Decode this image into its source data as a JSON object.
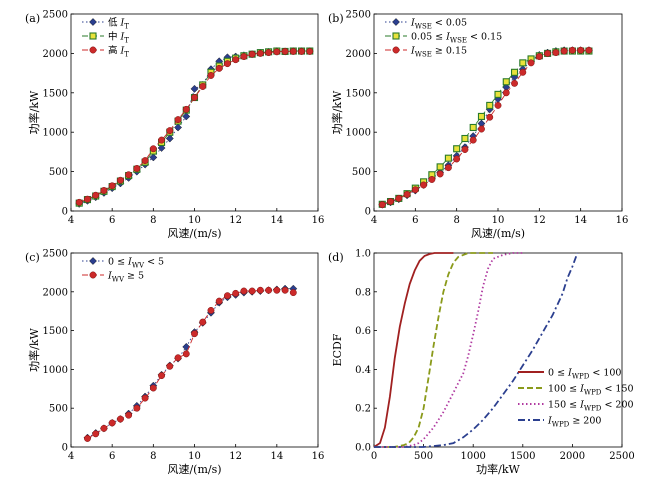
{
  "chart_data": [
    {
      "panel_label": "(a)",
      "type": "line",
      "xlabel": "风速/(m/s)",
      "ylabel": "功率/kW",
      "xlim": [
        4,
        16
      ],
      "ylim": [
        0,
        2500
      ],
      "xticks": [
        "4",
        "6",
        "8",
        "10",
        "12",
        "14",
        "16"
      ],
      "yticks": [
        "0",
        "500",
        "1000",
        "1500",
        "2000",
        "2500"
      ],
      "legend_position": "top-left",
      "series": [
        {
          "name": "低 IT",
          "color": "#2b3f8f",
          "marker": "diamond",
          "line": "dotted",
          "x": [
            4.4,
            4.8,
            5.2,
            5.6,
            6.0,
            6.4,
            6.8,
            7.2,
            7.6,
            8.0,
            8.4,
            8.8,
            9.2,
            9.6,
            10.0,
            10.4,
            10.8,
            11.2,
            11.6,
            12.0,
            12.4,
            12.8,
            13.2,
            13.6,
            14.0,
            14.4,
            14.8,
            15.2,
            15.6
          ],
          "y": [
            90,
            130,
            175,
            230,
            290,
            350,
            420,
            500,
            590,
            680,
            800,
            920,
            1060,
            1200,
            1550,
            1600,
            1800,
            1900,
            1950,
            1960,
            1975,
            1990,
            2010,
            2020,
            2030,
            2025,
            2030,
            2030,
            2030
          ]
        },
        {
          "name": "中 IT",
          "color": "#2a7a2a",
          "marker": "square",
          "line": "dashed",
          "x": [
            4.4,
            4.8,
            5.2,
            5.6,
            6.0,
            6.4,
            6.8,
            7.2,
            7.6,
            8.0,
            8.4,
            8.8,
            9.2,
            9.6,
            10.0,
            10.4,
            10.8,
            11.2,
            11.6,
            12.0,
            12.4,
            12.8,
            13.2,
            13.6,
            14.0,
            14.4,
            14.8,
            15.2,
            15.6
          ],
          "y": [
            100,
            145,
            190,
            250,
            310,
            380,
            450,
            530,
            620,
            760,
            870,
            1000,
            1140,
            1280,
            1440,
            1600,
            1760,
            1840,
            1900,
            1940,
            1970,
            1990,
            2010,
            2020,
            2030,
            2025,
            2030,
            2030,
            2030
          ]
        },
        {
          "name": "高 IT",
          "color": "#cc2a2a",
          "marker": "circle",
          "line": "dashed",
          "x": [
            4.4,
            4.8,
            5.2,
            5.6,
            6.0,
            6.4,
            6.8,
            7.2,
            7.6,
            8.0,
            8.4,
            8.8,
            9.2,
            9.6,
            10.0,
            10.4,
            10.8,
            11.2,
            11.6,
            12.0,
            12.4,
            12.8,
            13.2,
            13.6,
            14.0,
            14.4,
            14.8,
            15.2,
            15.6
          ],
          "y": [
            110,
            150,
            200,
            260,
            320,
            390,
            460,
            540,
            640,
            790,
            900,
            1020,
            1160,
            1290,
            1440,
            1580,
            1720,
            1810,
            1870,
            1920,
            1960,
            1990,
            2000,
            2010,
            2020,
            2025,
            2025,
            2025,
            2025
          ]
        }
      ]
    },
    {
      "panel_label": "(b)",
      "type": "line",
      "xlabel": "风速/(m/s)",
      "ylabel": "功率/kW",
      "xlim": [
        4,
        16
      ],
      "ylim": [
        0,
        2500
      ],
      "xticks": [
        "4",
        "6",
        "8",
        "10",
        "12",
        "14",
        "16"
      ],
      "yticks": [
        "0",
        "500",
        "1000",
        "1500",
        "2000",
        "2500"
      ],
      "legend_position": "top-left",
      "series": [
        {
          "name": "IWSE < 0.05",
          "color": "#2b3f8f",
          "marker": "diamond",
          "line": "dotted",
          "x": [
            4.4,
            4.8,
            5.2,
            5.6,
            6.0,
            6.4,
            6.8,
            7.2,
            7.6,
            8.0,
            8.4,
            8.8,
            9.2,
            9.6,
            10.0,
            10.4,
            10.8,
            11.2,
            11.6,
            12.0,
            12.4,
            12.8,
            13.2,
            13.6,
            14.0,
            14.4
          ],
          "y": [
            80,
            110,
            150,
            200,
            260,
            330,
            410,
            490,
            580,
            700,
            810,
            950,
            1110,
            1290,
            1420,
            1570,
            1700,
            1800,
            1900,
            1980,
            2010,
            2030,
            2040,
            2040,
            2040,
            2040
          ]
        },
        {
          "name": "0.05 ≤ IWSE < 0.15",
          "color": "#2a7a2a",
          "marker": "square",
          "line": "dashed",
          "x": [
            4.4,
            4.8,
            5.2,
            5.6,
            6.0,
            6.4,
            6.8,
            7.2,
            7.6,
            8.0,
            8.4,
            8.8,
            9.2,
            9.6,
            10.0,
            10.4,
            10.8,
            11.2,
            11.6,
            12.0,
            12.4,
            12.8,
            13.2,
            13.6,
            14.0,
            14.4
          ],
          "y": [
            85,
            120,
            160,
            220,
            290,
            370,
            460,
            560,
            670,
            790,
            920,
            1060,
            1200,
            1340,
            1480,
            1640,
            1760,
            1880,
            1930,
            1970,
            2000,
            2020,
            2030,
            2030,
            2030,
            2030
          ]
        },
        {
          "name": "IWSE ≥ 0.15",
          "color": "#cc2a2a",
          "marker": "circle",
          "line": "dashed",
          "x": [
            4.4,
            4.8,
            5.2,
            5.6,
            6.0,
            6.4,
            6.8,
            7.2,
            7.6,
            8.0,
            8.4,
            8.8,
            9.2,
            9.6,
            10.0,
            10.4,
            10.8,
            11.2,
            11.6,
            12.0,
            12.4,
            12.8,
            13.2,
            13.6,
            14.0,
            14.4
          ],
          "y": [
            80,
            120,
            160,
            210,
            270,
            330,
            400,
            470,
            550,
            660,
            780,
            900,
            1040,
            1190,
            1340,
            1500,
            1620,
            1760,
            1880,
            1960,
            2000,
            2010,
            2030,
            2040,
            2040,
            2040
          ]
        }
      ]
    },
    {
      "panel_label": "(c)",
      "type": "line",
      "xlabel": "风速/(m/s)",
      "ylabel": "功率/kW",
      "xlim": [
        4,
        16
      ],
      "ylim": [
        0,
        2500
      ],
      "xticks": [
        "4",
        "6",
        "8",
        "10",
        "12",
        "14",
        "16"
      ],
      "yticks": [
        "0",
        "500",
        "1000",
        "1500",
        "2000",
        "2500"
      ],
      "legend_position": "top-left",
      "series": [
        {
          "name": "0 ≤ IWV < 5",
          "color": "#2b3f8f",
          "marker": "diamond",
          "line": "dotted",
          "x": [
            4.8,
            5.2,
            5.6,
            6.0,
            6.4,
            6.8,
            7.2,
            7.6,
            8.0,
            8.4,
            8.8,
            9.2,
            9.6,
            10.0,
            10.4,
            10.8,
            11.2,
            11.6,
            12.0,
            12.4,
            12.8,
            13.2,
            13.6,
            14.0,
            14.4,
            14.8
          ],
          "y": [
            120,
            180,
            240,
            310,
            360,
            430,
            530,
            650,
            790,
            930,
            1050,
            1140,
            1290,
            1480,
            1600,
            1730,
            1860,
            1930,
            1960,
            1990,
            2000,
            2010,
            2020,
            2030,
            2040,
            2040
          ]
        },
        {
          "name": "IWV ≥ 5",
          "color": "#cc2a2a",
          "marker": "circle",
          "line": "dashed",
          "x": [
            4.8,
            5.2,
            5.6,
            6.0,
            6.4,
            6.8,
            7.2,
            7.6,
            8.0,
            8.4,
            8.8,
            9.2,
            9.6,
            10.0,
            10.4,
            10.8,
            11.2,
            11.6,
            12.0,
            12.4,
            12.8,
            13.2,
            13.6,
            14.0,
            14.4,
            14.8
          ],
          "y": [
            110,
            170,
            240,
            310,
            360,
            410,
            500,
            630,
            760,
            920,
            1040,
            1150,
            1200,
            1460,
            1610,
            1760,
            1880,
            1950,
            1980,
            2010,
            2010,
            2020,
            2020,
            2020,
            2020,
            1990
          ]
        }
      ]
    },
    {
      "panel_label": "(d)",
      "type": "line",
      "xlabel": "功率/kW",
      "ylabel": "ECDF",
      "xlim": [
        0,
        2500
      ],
      "ylim": [
        0,
        1.0
      ],
      "xticks": [
        "0",
        "500",
        "1000",
        "1500",
        "2000",
        "2500"
      ],
      "yticks": [
        "0.0",
        "0.2",
        "0.4",
        "0.6",
        "0.8",
        "1.0"
      ],
      "legend_position": "center-right",
      "series": [
        {
          "name": "0 ≤ IWPD < 100",
          "color": "#a02020",
          "line": "solid",
          "x": [
            0,
            60,
            110,
            160,
            210,
            260,
            310,
            360,
            410,
            460,
            510,
            560,
            610,
            660,
            710,
            760,
            800
          ],
          "y": [
            0,
            0.02,
            0.1,
            0.26,
            0.46,
            0.62,
            0.74,
            0.84,
            0.91,
            0.96,
            0.985,
            0.995,
            1.0,
            1.0,
            1.0,
            1.0,
            1.0
          ]
        },
        {
          "name": "100 ≤ IWPD < 150",
          "color": "#8a9a1a",
          "line": "dashed",
          "x": [
            0,
            200,
            300,
            350,
            400,
            450,
            500,
            550,
            600,
            650,
            700,
            750,
            800,
            850,
            900,
            950,
            1000,
            1100,
            1200
          ],
          "y": [
            0,
            0,
            0.01,
            0.02,
            0.05,
            0.1,
            0.2,
            0.36,
            0.52,
            0.67,
            0.8,
            0.89,
            0.95,
            0.98,
            0.99,
            1.0,
            1.0,
            1.0,
            1.0
          ]
        },
        {
          "name": "150 ≤ IWPD < 200",
          "color": "#b03aa0",
          "line": "dotted",
          "x": [
            0,
            300,
            350,
            400,
            450,
            500,
            550,
            600,
            650,
            700,
            750,
            800,
            850,
            900,
            950,
            1000,
            1050,
            1100,
            1150,
            1200,
            1300,
            1400,
            1500
          ],
          "y": [
            0,
            0,
            0.005,
            0.01,
            0.02,
            0.04,
            0.07,
            0.1,
            0.14,
            0.18,
            0.23,
            0.28,
            0.33,
            0.38,
            0.47,
            0.58,
            0.7,
            0.83,
            0.92,
            0.97,
            0.99,
            1.0,
            1.0
          ]
        },
        {
          "name": "IWPD ≥ 200",
          "color": "#2b3f8f",
          "line": "dashdot",
          "x": [
            0,
            400,
            500,
            600,
            700,
            800,
            900,
            1000,
            1100,
            1200,
            1300,
            1400,
            1500,
            1600,
            1700,
            1800,
            1900,
            1950,
            2000,
            2050
          ],
          "y": [
            0,
            0,
            0,
            0.005,
            0.01,
            0.02,
            0.05,
            0.09,
            0.14,
            0.2,
            0.27,
            0.34,
            0.42,
            0.5,
            0.59,
            0.68,
            0.79,
            0.87,
            0.93,
            1.0
          ]
        }
      ]
    }
  ]
}
